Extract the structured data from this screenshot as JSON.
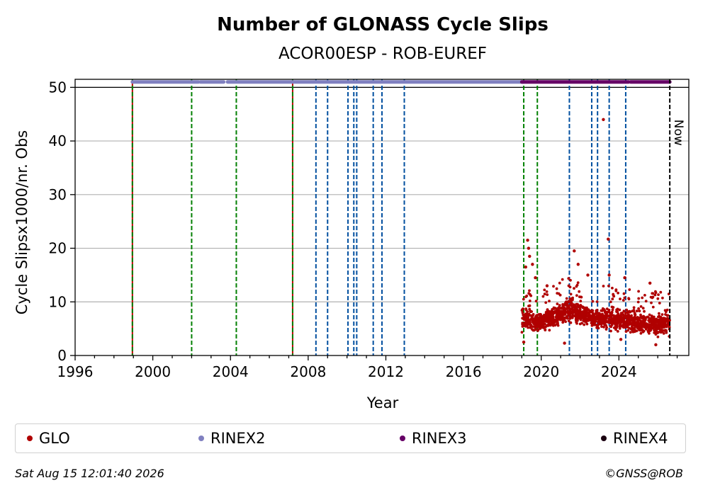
{
  "chart_data": {
    "type": "scatter",
    "title": "Number of GLONASS Cycle Slips",
    "subtitle": "ACOR00ESP - ROB-EUREF",
    "xlabel": "Year",
    "ylabel": "Cycle Slipsx1000/nr. Obs",
    "xlim": [
      1996,
      2027.6
    ],
    "ylim": [
      0,
      51.5
    ],
    "x_ticks": [
      1996,
      2000,
      2004,
      2008,
      2012,
      2016,
      2020,
      2024
    ],
    "x_tick_labels": [
      "1996",
      "2000",
      "2004",
      "2008",
      "2012",
      "2016",
      "2020",
      "2024"
    ],
    "y_ticks": [
      0,
      10,
      20,
      30,
      40,
      50
    ],
    "y_tick_labels": [
      "0",
      "10",
      "20",
      "30",
      "40",
      "50"
    ],
    "grid": "horizontal",
    "legend_placement": "below",
    "now_label": "Now",
    "now_x": 2026.62,
    "colors": {
      "glo": "#b00000",
      "rinex2": "#8080c0",
      "rinex3": "#660066",
      "rinex4": "#1a0010",
      "green_event": "#008000",
      "blue_event": "#0050a0",
      "red_event": "#c00000",
      "grid": "#b0b0b0"
    },
    "event_lines": {
      "red": [
        1998.95,
        2007.2
      ],
      "green": [
        1998.95,
        2002.0,
        2004.3,
        2007.2,
        2019.1,
        2019.8
      ],
      "blue": [
        2008.4,
        2009.0,
        2010.05,
        2010.35,
        2010.5,
        2011.35,
        2011.8,
        2012.95,
        2021.45,
        2022.6,
        2022.9,
        2023.5,
        2024.35
      ]
    },
    "rinex_bars": [
      {
        "name": "RINEX2",
        "y": 51,
        "segments": [
          [
            1998.95,
            2002.35
          ],
          [
            2002.45,
            2003.65
          ],
          [
            2003.85,
            2019.1
          ]
        ]
      },
      {
        "name": "RINEX3",
        "y": 51,
        "segments": [
          [
            2019.0,
            2024.5
          ],
          [
            2024.6,
            2026.62
          ]
        ]
      }
    ],
    "series": [
      {
        "name": "GLO",
        "kind": "cluster",
        "x_range": [
          2019.0,
          2026.62
        ],
        "band": [
          [
            2019.0,
            4.5,
            9.5
          ],
          [
            2019.8,
            4.0,
            8.0
          ],
          [
            2020.5,
            5.0,
            9.0
          ],
          [
            2021.5,
            6.0,
            11.0
          ],
          [
            2022.5,
            5.0,
            9.0
          ],
          [
            2023.5,
            4.5,
            9.0
          ],
          [
            2024.5,
            4.0,
            8.5
          ],
          [
            2025.5,
            3.5,
            8.0
          ],
          [
            2026.6,
            3.5,
            8.0
          ]
        ],
        "outliers": [
          [
            2019.2,
            16.5
          ],
          [
            2019.3,
            21.5
          ],
          [
            2019.35,
            20.0
          ],
          [
            2019.4,
            18.5
          ],
          [
            2019.55,
            17.0
          ],
          [
            2019.7,
            14.5
          ],
          [
            2021.7,
            19.5
          ],
          [
            2021.9,
            17.0
          ],
          [
            2023.2,
            44.0
          ],
          [
            2023.45,
            21.7
          ],
          [
            2023.5,
            15.0
          ],
          [
            2020.3,
            13.0
          ],
          [
            2024.3,
            14.5
          ],
          [
            2025.6,
            13.5
          ],
          [
            2021.2,
            2.3
          ],
          [
            2022.4,
            15.0
          ],
          [
            2019.1,
            2.5
          ],
          [
            2024.1,
            3.0
          ],
          [
            2025.9,
            2.0
          ]
        ]
      },
      {
        "name": "RINEX2",
        "kind": "legend-only"
      },
      {
        "name": "RINEX3",
        "kind": "legend-only"
      },
      {
        "name": "RINEX4",
        "kind": "legend-only"
      }
    ]
  },
  "legend": {
    "items": [
      {
        "label": "GLO",
        "color": "#b00000"
      },
      {
        "label": "RINEX2",
        "color": "#8080c0"
      },
      {
        "label": "RINEX3",
        "color": "#660066"
      },
      {
        "label": "RINEX4",
        "color": "#1a0010"
      }
    ]
  },
  "footer": {
    "timestamp": "Sat Aug 15 12:01:40 2026",
    "copyright": "©GNSS@ROB"
  }
}
